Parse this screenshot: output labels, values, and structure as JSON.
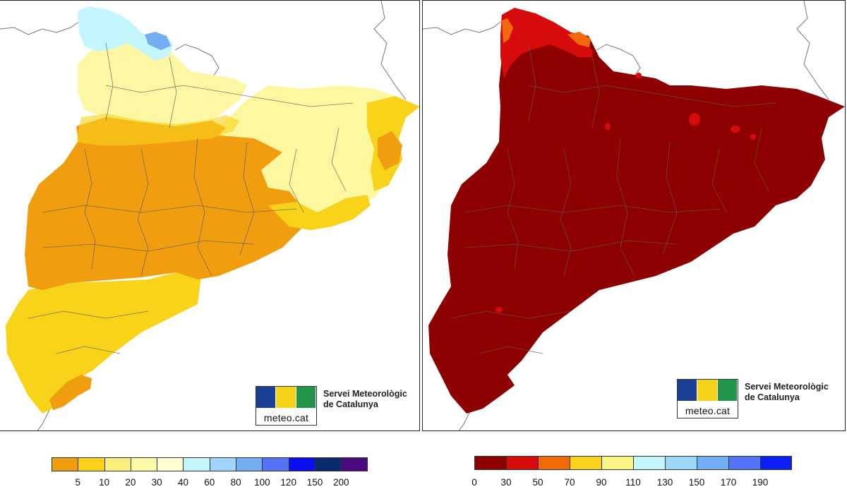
{
  "maps": [
    {
      "id": "left",
      "legend": {
        "colors": [
          "#f09e10",
          "#f9d21a",
          "#faef7e",
          "#fdfaa8",
          "#feffd2",
          "#c4f6fe",
          "#a0d4fa",
          "#73aef3",
          "#5574f5",
          "#0b0ff0",
          "#0b2a6e",
          "#4a0a7f"
        ],
        "ticks": [
          "5",
          "10",
          "20",
          "30",
          "40",
          "60",
          "80",
          "100",
          "120",
          "150",
          "200"
        ]
      }
    },
    {
      "id": "right",
      "legend": {
        "colors": [
          "#8d0101",
          "#d60b0b",
          "#f1690a",
          "#f9d21a",
          "#faf485",
          "#c4f6fe",
          "#a0d4fa",
          "#73aef3",
          "#5574f5",
          "#0b1ff6"
        ],
        "ticks": [
          "0",
          "30",
          "50",
          "70",
          "90",
          "110",
          "130",
          "150",
          "170",
          "190"
        ]
      }
    }
  ],
  "logo": {
    "wordmark": "meteo.cat",
    "title_line1": "Servei Meteorològic",
    "title_line2": "de Catalunya",
    "colors": {
      "blue": "#1b3f93",
      "yellow": "#f5d31a",
      "green": "#23954a"
    }
  }
}
